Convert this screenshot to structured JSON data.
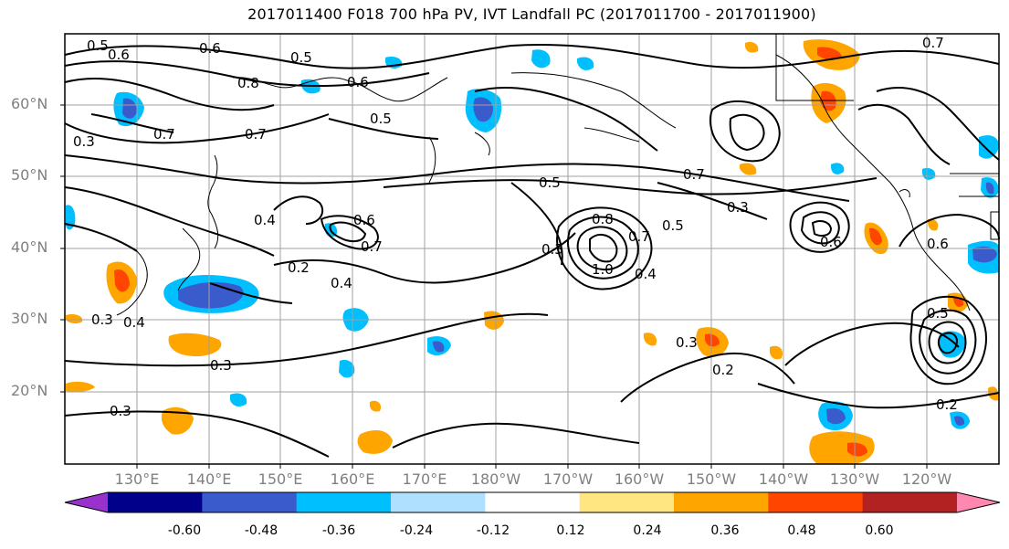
{
  "title": "2017011400 F018 700 hPa PV, IVT Landfall PC (2017011700 - 2017011900)",
  "lat_labels": [
    "60°N",
    "50°N",
    "40°N",
    "30°N",
    "20°N"
  ],
  "lon_labels": [
    "130°E",
    "140°E",
    "150°E",
    "160°E",
    "170°E",
    "180°W",
    "170°W",
    "160°W",
    "150°W",
    "140°W",
    "130°W",
    "120°W"
  ],
  "contour_labels": [
    "0.5",
    "0.6",
    "0.6",
    "0.5",
    "0.8",
    "0.7",
    "0.7",
    "0.6",
    "0.5",
    "0.3",
    "0.4",
    "0.2",
    "0.6",
    "0.7",
    "0.5",
    "0.3",
    "0.8",
    "1.0",
    "0.7",
    "0.5",
    "0.4",
    "0.7",
    "0.3",
    "0.4",
    "0.3",
    "0.3",
    "0.2",
    "0.3",
    "0.6",
    "0.6",
    "0.5",
    "0.2",
    "0.4",
    "0.3",
    "0.7"
  ],
  "colorbar": {
    "tick_labels": [
      "-0.60",
      "-0.48",
      "-0.36",
      "-0.24",
      "-0.12",
      "0.12",
      "0.24",
      "0.36",
      "0.48",
      "0.60"
    ],
    "colors": [
      "#9932cc",
      "#00008b",
      "#3a5bcc",
      "#00bfff",
      "#b0e0ff",
      "#ffffff",
      "#ffe680",
      "#ffa500",
      "#ff4500",
      "#b22222",
      "#ff88b0"
    ],
    "extend": "both"
  }
}
